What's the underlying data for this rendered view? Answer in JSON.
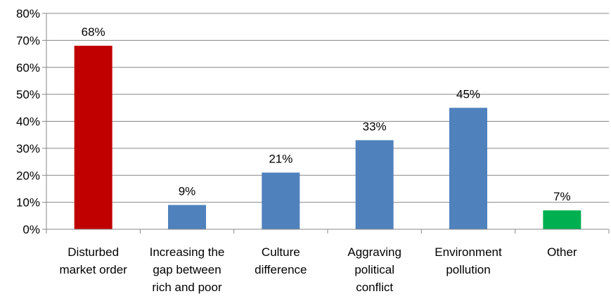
{
  "chart_data": {
    "type": "bar",
    "categories": [
      [
        "Disturbed",
        "market order"
      ],
      [
        "Increasing the",
        "gap between",
        "rich and poor"
      ],
      [
        "Culture",
        "difference"
      ],
      [
        "Aggraving",
        "political",
        "conflict"
      ],
      [
        "Environment",
        "pollution"
      ],
      [
        "Other"
      ]
    ],
    "values": [
      68,
      9,
      21,
      33,
      45,
      7
    ],
    "data_labels": [
      "68%",
      "9%",
      "21%",
      "33%",
      "45%",
      "7%"
    ],
    "bar_colors": [
      "#C00000",
      "#4F81BD",
      "#4F81BD",
      "#4F81BD",
      "#4F81BD",
      "#00B050"
    ],
    "ylim": [
      0,
      80
    ],
    "yticks": [
      0,
      10,
      20,
      30,
      40,
      50,
      60,
      70,
      80
    ],
    "ytick_labels": [
      "0%",
      "10%",
      "20%",
      "30%",
      "40%",
      "50%",
      "60%",
      "70%",
      "80%"
    ],
    "title": "",
    "xlabel": "",
    "ylabel": "",
    "grid": true,
    "legend": "none",
    "gridline_color": "#878787",
    "axis_color": "#878787"
  }
}
